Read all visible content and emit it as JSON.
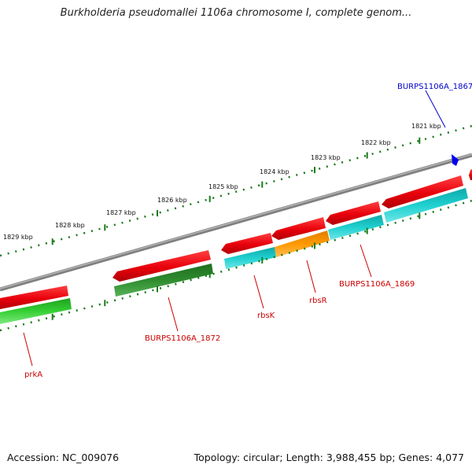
{
  "title": "Burkholderia pseudomallei 1106a chromosome I, complete genom...",
  "accession_text": "Accession: NC_009076",
  "summary_text": "Topology: circular; Length: 3,988,455 bp; Genes: 4,077",
  "colors": {
    "backbone": "#8a8a8a",
    "gene_red": "#e8000b",
    "gene_green": "#2ecc2e",
    "gene_darkgreen": "#2e8b2e",
    "gene_cyan": "#12c4c4",
    "gene_orange": "#ff9900",
    "label_red": "#cc0000",
    "label_blue": "#0000cc",
    "tick": "#1a7a1a"
  },
  "kbp_labels": [
    "1821 kbp",
    "1822 kbp",
    "1823 kbp",
    "1824 kbp",
    "1825 kbp",
    "1826 kbp",
    "1827 kbp",
    "1828 kbp",
    "1829 kbp"
  ],
  "gene_labels": [
    {
      "text": "BURPS1106A_1867",
      "color": "blue"
    },
    {
      "text": "BURPS1106A_1869",
      "color": "red"
    },
    {
      "text": "rbsR",
      "color": "red"
    },
    {
      "text": "rbsK",
      "color": "red"
    },
    {
      "text": "BURPS1106A_1872",
      "color": "red"
    },
    {
      "text": "prkA",
      "color": "red"
    }
  ]
}
